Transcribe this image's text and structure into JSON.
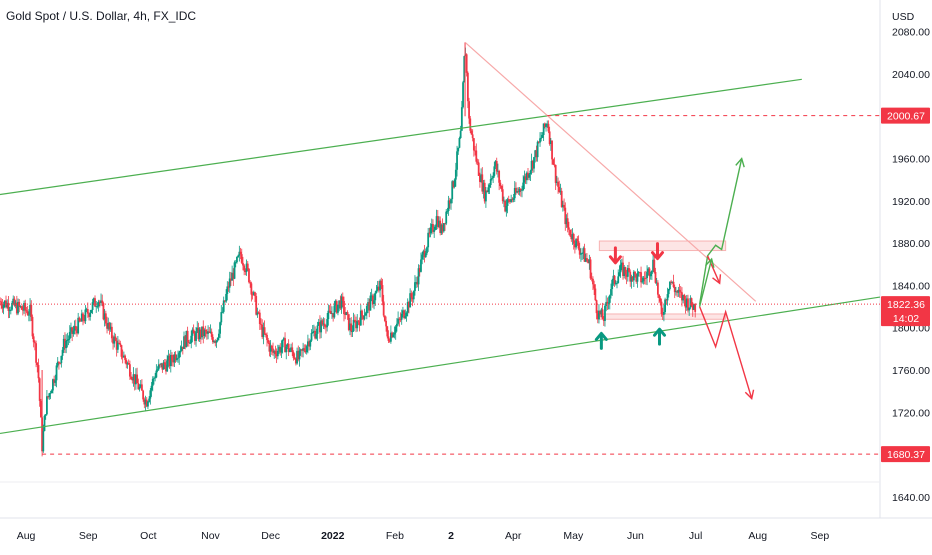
{
  "chart_data": {
    "type": "candlestick",
    "title": "Gold Spot / U.S. Dollar, 4h, FX_IDC",
    "currency_label": "USD",
    "y_range": [
      1620,
      2110
    ],
    "y_ticks": [
      {
        "value": 1640,
        "label": "1640.00"
      },
      {
        "value": 1680,
        "label": "1680.00"
      },
      {
        "value": 1720,
        "label": "1720.00"
      },
      {
        "value": 1760,
        "label": "1760.00"
      },
      {
        "value": 1800,
        "label": "1800.00"
      },
      {
        "value": 1840,
        "label": "1840.00"
      },
      {
        "value": 1880,
        "label": "1880.00"
      },
      {
        "value": 1920,
        "label": "1920.00"
      },
      {
        "value": 1960,
        "label": "1960.00"
      },
      {
        "value": 2000,
        "label": "2000.00"
      },
      {
        "value": 2040,
        "label": "2040.00"
      },
      {
        "value": 2080,
        "label": "2080.00"
      }
    ],
    "x_ticks": [
      {
        "date": "2021-08-01",
        "label": "Aug"
      },
      {
        "date": "2021-09-01",
        "label": "Sep"
      },
      {
        "date": "2021-10-01",
        "label": "Oct"
      },
      {
        "date": "2021-11-01",
        "label": "Nov"
      },
      {
        "date": "2021-12-01",
        "label": "Dec"
      },
      {
        "date": "2022-01-01",
        "label": "2022"
      },
      {
        "date": "2022-02-01",
        "label": "Feb"
      },
      {
        "date": "2022-03-01",
        "label": "2"
      },
      {
        "date": "2022-04-01",
        "label": "Apr"
      },
      {
        "date": "2022-05-01",
        "label": "May"
      },
      {
        "date": "2022-06-01",
        "label": "Jun"
      },
      {
        "date": "2022-07-01",
        "label": "Jul"
      },
      {
        "date": "2022-08-01",
        "label": "Aug"
      },
      {
        "date": "2022-09-01",
        "label": "Sep"
      }
    ],
    "x_range": [
      "2021-07-19",
      "2022-10-01"
    ],
    "price_path": [
      [
        "2021-07-19",
        1825
      ],
      [
        "2021-08-03",
        1815
      ],
      [
        "2021-08-07",
        1760
      ],
      [
        "2021-08-09",
        1688
      ],
      [
        "2021-08-11",
        1728
      ],
      [
        "2021-08-20",
        1785
      ],
      [
        "2021-08-26",
        1800
      ],
      [
        "2021-09-01",
        1815
      ],
      [
        "2021-09-06",
        1828
      ],
      [
        "2021-09-12",
        1795
      ],
      [
        "2021-09-20",
        1768
      ],
      [
        "2021-09-25",
        1748
      ],
      [
        "2021-09-30",
        1730
      ],
      [
        "2021-10-05",
        1760
      ],
      [
        "2021-10-12",
        1768
      ],
      [
        "2021-10-20",
        1790
      ],
      [
        "2021-10-28",
        1795
      ],
      [
        "2021-11-04",
        1790
      ],
      [
        "2021-11-10",
        1840
      ],
      [
        "2021-11-16",
        1870
      ],
      [
        "2021-11-20",
        1850
      ],
      [
        "2021-11-26",
        1800
      ],
      [
        "2021-12-02",
        1776
      ],
      [
        "2021-12-08",
        1784
      ],
      [
        "2021-12-15",
        1770
      ],
      [
        "2021-12-21",
        1792
      ],
      [
        "2021-12-29",
        1808
      ],
      [
        "2022-01-05",
        1825
      ],
      [
        "2022-01-10",
        1798
      ],
      [
        "2022-01-18",
        1818
      ],
      [
        "2022-01-25",
        1840
      ],
      [
        "2022-01-28",
        1790
      ],
      [
        "2022-02-03",
        1805
      ],
      [
        "2022-02-10",
        1832
      ],
      [
        "2022-02-16",
        1875
      ],
      [
        "2022-02-22",
        1905
      ],
      [
        "2022-02-24",
        1890
      ],
      [
        "2022-03-02",
        1935
      ],
      [
        "2022-03-06",
        1985
      ],
      [
        "2022-03-08",
        2070
      ],
      [
        "2022-03-10",
        1995
      ],
      [
        "2022-03-14",
        1955
      ],
      [
        "2022-03-18",
        1925
      ],
      [
        "2022-03-23",
        1955
      ],
      [
        "2022-03-28",
        1915
      ],
      [
        "2022-04-04",
        1930
      ],
      [
        "2022-04-11",
        1958
      ],
      [
        "2022-04-18",
        1996
      ],
      [
        "2022-04-22",
        1945
      ],
      [
        "2022-04-28",
        1895
      ],
      [
        "2022-05-04",
        1875
      ],
      [
        "2022-05-09",
        1860
      ],
      [
        "2022-05-13",
        1815
      ],
      [
        "2022-05-16",
        1808
      ],
      [
        "2022-05-20",
        1840
      ],
      [
        "2022-05-25",
        1855
      ],
      [
        "2022-05-30",
        1850
      ],
      [
        "2022-06-05",
        1845
      ],
      [
        "2022-06-10",
        1862
      ],
      [
        "2022-06-14",
        1810
      ],
      [
        "2022-06-18",
        1845
      ],
      [
        "2022-06-22",
        1832
      ],
      [
        "2022-06-28",
        1822
      ],
      [
        "2022-07-01",
        1820
      ]
    ],
    "channel_upper": {
      "from": [
        "2021-07-19",
        1926
      ],
      "to": [
        "2022-08-23",
        2035
      ]
    },
    "channel_lower": {
      "from": [
        "2021-07-19",
        1700
      ],
      "to": [
        "2022-10-01",
        1829
      ]
    },
    "down_trendline": {
      "from": [
        "2022-03-08",
        2070
      ],
      "to": [
        "2022-07-31",
        1825
      ]
    },
    "resistance_zone": {
      "from": "2022-05-14",
      "to": "2022-07-16",
      "low": 1873,
      "high": 1882
    },
    "support_zone": {
      "from": "2022-05-14",
      "to": "2022-07-16",
      "low": 1808,
      "high": 1813
    },
    "h_lines": [
      {
        "date_from": "2022-04-18",
        "value": 2000.67,
        "label": "2000.67",
        "color": "#f23645"
      },
      {
        "date_from": "2021-08-09",
        "value": 1680.37,
        "label": "1680.37",
        "color": "#f23645"
      },
      {
        "date_from": "2021-07-19",
        "value": 1822.36,
        "label": "1822.36",
        "color": "#f23645",
        "sub_label": "14:02"
      }
    ],
    "arrows": [
      {
        "date": "2022-05-22",
        "value": 1868,
        "dir": "down",
        "color": "#f23645"
      },
      {
        "date": "2022-06-12",
        "value": 1872,
        "dir": "down",
        "color": "#f23645"
      },
      {
        "date": "2022-05-15",
        "value": 1788,
        "dir": "up",
        "color": "#089981"
      },
      {
        "date": "2022-06-13",
        "value": 1792,
        "dir": "up",
        "color": "#089981"
      }
    ],
    "scenario_paths": [
      {
        "color": "#4caf50",
        "points": [
          [
            "2022-07-03",
            1822
          ],
          [
            "2022-07-07",
            1868
          ],
          [
            "2022-07-11",
            1878
          ],
          [
            "2022-07-14",
            1874
          ],
          [
            "2022-07-24",
            1960
          ]
        ]
      },
      {
        "color": "#f23645",
        "points": [
          [
            "2022-07-07",
            1868
          ],
          [
            "2022-07-13",
            1842
          ]
        ]
      },
      {
        "color": "#f23645",
        "points": [
          [
            "2022-07-03",
            1820
          ],
          [
            "2022-07-11",
            1782
          ],
          [
            "2022-07-16",
            1815
          ],
          [
            "2022-07-29",
            1733
          ]
        ]
      },
      {
        "color": "#4caf50",
        "points": [
          [
            "2022-07-03",
            1820
          ],
          [
            "2022-07-09",
            1865
          ]
        ]
      }
    ],
    "colors": {
      "up": "#089981",
      "down": "#f23645",
      "channel": "#4caf50",
      "trendline": "#f7a9a9",
      "zone_fill": "#fde5e5",
      "zone_border": "#f7b3b3",
      "axis_text": "#131722",
      "grid": "#e0e3eb"
    }
  }
}
